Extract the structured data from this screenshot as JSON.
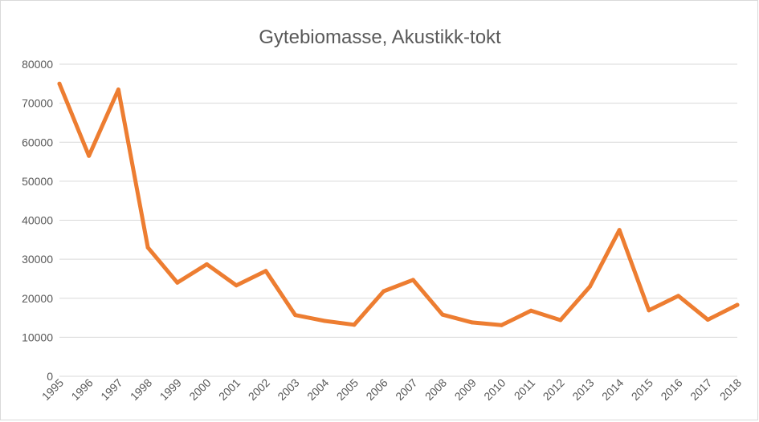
{
  "chart_data": {
    "type": "line",
    "title": "Gytebiomasse, Akustikk-tokt",
    "xlabel": "",
    "ylabel": "",
    "categories": [
      "1995",
      "1996",
      "1997",
      "1998",
      "1999",
      "2000",
      "2001",
      "2002",
      "2003",
      "2004",
      "2005",
      "2006",
      "2007",
      "2008",
      "2009",
      "2010",
      "2011",
      "2012",
      "2013",
      "2014",
      "2015",
      "2016",
      "2017",
      "2018"
    ],
    "series": [
      {
        "values": [
          75000,
          56500,
          73500,
          33000,
          24000,
          28700,
          23300,
          27000,
          15700,
          14200,
          13200,
          21800,
          24700,
          15800,
          13800,
          13100,
          16800,
          14400,
          23000,
          37500,
          16900,
          20600,
          14500,
          18300
        ],
        "color": "#ed7d31"
      }
    ],
    "ylim": [
      0,
      80000
    ],
    "yticks": [
      "0",
      "10000",
      "20000",
      "30000",
      "40000",
      "50000",
      "60000",
      "70000",
      "80000"
    ],
    "grid": true,
    "legend": "none"
  }
}
